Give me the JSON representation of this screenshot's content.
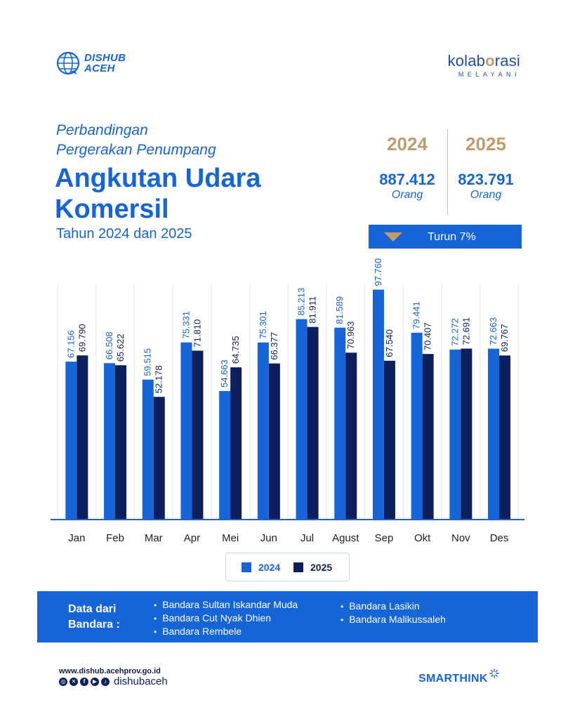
{
  "brand_left": {
    "name_line1": "DISHUB",
    "name_line2": "ACEH"
  },
  "brand_right": {
    "word_pre": "kolab",
    "word_accent": "o",
    "word_post": "rasi",
    "tagline": "MELAYANI"
  },
  "header": {
    "subtitle_line1": "Perbandingan",
    "subtitle_line2": "Pergerakan Penumpang",
    "title_line1": "Angkutan Udara",
    "title_line2": "Komersil",
    "year_line": "Tahun 2024 dan 2025"
  },
  "summary": {
    "years": [
      "2024",
      "2025"
    ],
    "totals": [
      "887.412",
      "823.791"
    ],
    "unit": "Orang",
    "change_label": "Turun 7%"
  },
  "colors": {
    "series_2024": "#1565d8",
    "series_2025": "#0e1f5e",
    "accent": "#c39b6b"
  },
  "chart_data": {
    "type": "bar",
    "categories": [
      "Jan",
      "Feb",
      "Mar",
      "Apr",
      "Mei",
      "Jun",
      "Jul",
      "Agust",
      "Sep",
      "Okt",
      "Nov",
      "Des"
    ],
    "series": [
      {
        "name": "2024",
        "values": [
          67156,
          66508,
          59515,
          75331,
          54663,
          75301,
          85213,
          81589,
          97760,
          79441,
          72272,
          72663
        ],
        "labels": [
          "67.156",
          "66.508",
          "59.515",
          "75.331",
          "54.663",
          "75.301",
          "85.213",
          "81.589",
          "97.760",
          "79.441",
          "72.272",
          "72.663"
        ]
      },
      {
        "name": "2025",
        "values": [
          69790,
          65622,
          52178,
          71810,
          64735,
          66377,
          81911,
          70963,
          67540,
          70407,
          72691,
          69767
        ],
        "labels": [
          "69.790",
          "65.622",
          "52.178",
          "71.810",
          "64.735",
          "66.377",
          "81.911",
          "70.963",
          "67.540",
          "70.407",
          "72.691",
          "69.767"
        ]
      }
    ],
    "ylim": [
      0,
      100000
    ],
    "grid": "vertical",
    "legend": "bottom-center"
  },
  "legend": {
    "item1": "2024",
    "item2": "2025"
  },
  "source": {
    "label_line1": "Data dari",
    "label_line2": "Bandara :",
    "airports": [
      "Bandara Sultan Iskandar Muda",
      "Bandara Cut Nyak Dhien",
      "Bandara Rembele",
      "Bandara Lasikin",
      "Bandara Malikussaleh"
    ]
  },
  "footer": {
    "website": "www.dishub.acehprov.go.id",
    "handle": "dishubaceh",
    "social_icons": [
      "instagram-icon",
      "x-icon",
      "facebook-icon",
      "youtube-icon",
      "tiktok-icon"
    ],
    "partner_logo": "SMARTHINK"
  }
}
